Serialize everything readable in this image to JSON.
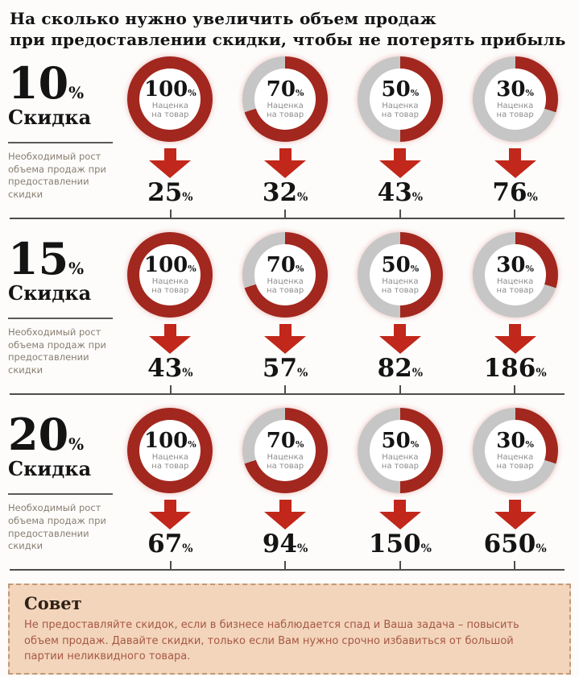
{
  "title": {
    "line1": "На сколько нужно увеличить объем продаж",
    "line2": "при предоставлении скидки, чтобы не потерять прибыль"
  },
  "symbols": {
    "percent": "%"
  },
  "discount_word": "Скидка",
  "left_note": "Необходимый рост объема продаж при предоставлении скидки",
  "circle_caption": "Наценка\nна товар",
  "rows": [
    {
      "discount": "10",
      "columns": [
        {
          "markup": "100",
          "growth": "25"
        },
        {
          "markup": "70",
          "growth": "32"
        },
        {
          "markup": "50",
          "growth": "43"
        },
        {
          "markup": "30",
          "growth": "76"
        }
      ]
    },
    {
      "discount": "15",
      "columns": [
        {
          "markup": "100",
          "growth": "43"
        },
        {
          "markup": "70",
          "growth": "57"
        },
        {
          "markup": "50",
          "growth": "82"
        },
        {
          "markup": "30",
          "growth": "186"
        }
      ]
    },
    {
      "discount": "20",
      "columns": [
        {
          "markup": "100",
          "growth": "67"
        },
        {
          "markup": "70",
          "growth": "94"
        },
        {
          "markup": "50",
          "growth": "150"
        },
        {
          "markup": "30",
          "growth": "650"
        }
      ]
    }
  ],
  "advice": {
    "heading": "Совет",
    "text": "Не предоставляйте скидок, если в бизнесе наблюдается спад и Ваша задача – повысить объем продаж. Давайте скидки, только если Вам нужно срочно избавиться от большой партии неликвидного товара."
  },
  "colors": {
    "ring_red": "#a2271e",
    "ring_gray": "#c6c6c6",
    "arrow_red": "#c1271a",
    "beige": "#f3d5bc",
    "text_dark": "#141414",
    "advice_text": "#a65843"
  },
  "chart_data": {
    "type": "table",
    "title": "На сколько нужно увеличить объем продаж при предоставлении скидки, чтобы не потерять прибыль",
    "categories_label": "Наценка на товар (%)",
    "categories": [
      100,
      70,
      50,
      30
    ],
    "series": [
      {
        "name": "10% скидка",
        "values": [
          25,
          32,
          43,
          76
        ]
      },
      {
        "name": "15% скидка",
        "values": [
          43,
          57,
          82,
          186
        ]
      },
      {
        "name": "20% скидка",
        "values": [
          67,
          94,
          150,
          650
        ]
      }
    ],
    "value_label": "Необходимый рост объема продаж при предоставлении скидки (%)",
    "gauge_style": "donut, red fill clockwise from top equal to markup %, gray remainder"
  }
}
